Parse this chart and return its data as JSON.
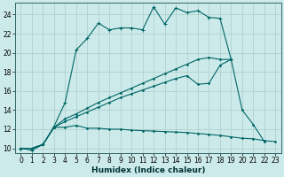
{
  "xlabel": "Humidex (Indice chaleur)",
  "background_color": "#cdeaea",
  "grid_color": "#b0d0d0",
  "line_color": "#006666",
  "xlim": [
    -0.5,
    23.5
  ],
  "ylim": [
    9.5,
    25.2
  ],
  "xticks": [
    0,
    1,
    2,
    3,
    4,
    5,
    6,
    7,
    8,
    9,
    10,
    11,
    12,
    13,
    14,
    15,
    16,
    17,
    18,
    19,
    20,
    21,
    22,
    23
  ],
  "yticks": [
    10,
    12,
    14,
    16,
    18,
    20,
    22,
    24
  ],
  "line1": {
    "x": [
      0,
      1,
      2,
      3,
      4,
      5,
      6,
      7,
      8,
      9,
      10,
      11,
      12,
      13,
      14,
      15,
      16,
      17,
      18,
      19
    ],
    "y": [
      10,
      9.8,
      10.4,
      12.3,
      14.8,
      20.3,
      21.5,
      23.1,
      22.4,
      22.6,
      22.6,
      22.4,
      24.8,
      23.0,
      24.7,
      24.2,
      24.4,
      23.7,
      23.6,
      19.3
    ],
    "marker": "+"
  },
  "line2": {
    "x": [
      0,
      1,
      2,
      3,
      4,
      5,
      6,
      7,
      8,
      9,
      10,
      11,
      12,
      13,
      14,
      15,
      16,
      17,
      18,
      19,
      20,
      21,
      22,
      23
    ],
    "y": [
      10,
      10.0,
      10.4,
      12.2,
      12.2,
      12.4,
      12.1,
      12.1,
      12.0,
      12.0,
      11.9,
      11.85,
      11.8,
      11.75,
      11.7,
      11.65,
      11.55,
      11.45,
      11.35,
      11.2,
      11.05,
      11.0,
      10.8,
      10.7
    ],
    "marker": "."
  },
  "line3": {
    "x": [
      0,
      1,
      2,
      3,
      4,
      5,
      6,
      7,
      8,
      9,
      10,
      11,
      12,
      13,
      14,
      15,
      16,
      17,
      18,
      19,
      20,
      21,
      22
    ],
    "y": [
      10,
      10.0,
      10.4,
      12.2,
      12.8,
      13.3,
      13.8,
      14.3,
      14.8,
      15.3,
      15.7,
      16.1,
      16.5,
      16.9,
      17.3,
      17.6,
      16.7,
      16.8,
      18.7,
      19.3,
      14.0,
      12.5,
      10.7
    ],
    "marker": "."
  },
  "line4": {
    "x": [
      0,
      1,
      2,
      3,
      4,
      5,
      6,
      7,
      8,
      9,
      10,
      11,
      12,
      13,
      14,
      15,
      16,
      17,
      18,
      19
    ],
    "y": [
      10,
      10.0,
      10.4,
      12.2,
      13.1,
      13.6,
      14.2,
      14.8,
      15.3,
      15.8,
      16.3,
      16.8,
      17.3,
      17.8,
      18.3,
      18.8,
      19.3,
      19.5,
      19.3,
      19.3
    ],
    "marker": "."
  }
}
